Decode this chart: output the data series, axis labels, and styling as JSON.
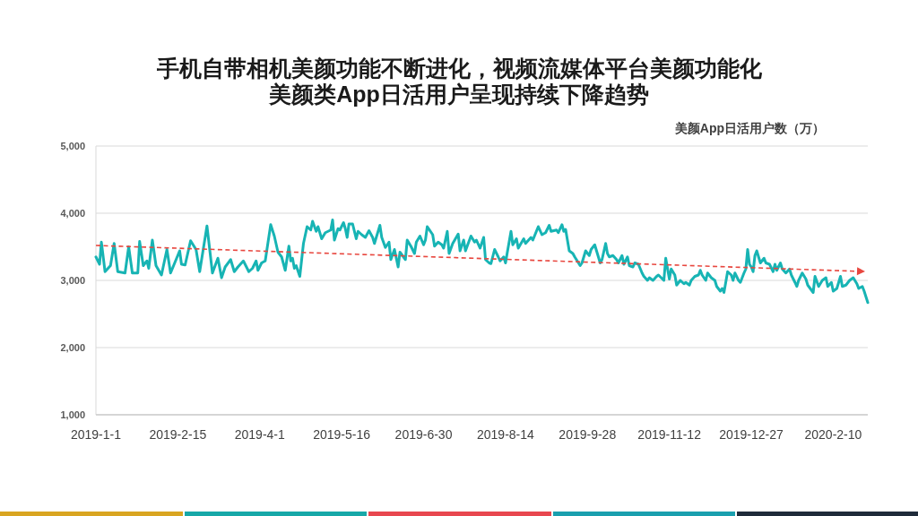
{
  "chart_data": {
    "type": "line",
    "title": "手机自带相机美颜功能不断进化，视频流媒体平台美颜功能化",
    "subtitle": "美颜类App日活用户呈现持续下降趋势",
    "ylabel": "美颜App日活用户数（万）",
    "xlim": [
      "2019-01-01",
      "2020-02-29"
    ],
    "xticks": [
      {
        "value": "2019-01-01",
        "label": "2019-1-1"
      },
      {
        "value": "2019-02-15",
        "label": "2019-2-15"
      },
      {
        "value": "2019-04-01",
        "label": "2019-4-1"
      },
      {
        "value": "2019-05-16",
        "label": "2019-5-16"
      },
      {
        "value": "2019-06-30",
        "label": "2019-6-30"
      },
      {
        "value": "2019-08-14",
        "label": "2019-8-14"
      },
      {
        "value": "2019-09-28",
        "label": "2019-9-28"
      },
      {
        "value": "2019-11-12",
        "label": "2019-11-12"
      },
      {
        "value": "2019-12-27",
        "label": "2019-12-27"
      },
      {
        "value": "2020-02-10",
        "label": "2020-2-10"
      }
    ],
    "ylim": [
      1000,
      5000
    ],
    "yticks": [
      {
        "value": 1000,
        "label": "1,000"
      },
      {
        "value": 2000,
        "label": "2,000"
      },
      {
        "value": 3000,
        "label": "3,000"
      },
      {
        "value": 4000,
        "label": "4,000"
      },
      {
        "value": 5000,
        "label": "5,000"
      }
    ],
    "grid": "y",
    "x": [
      "2019-01-01",
      "2019-01-03",
      "2019-01-04",
      "2019-01-06",
      "2019-01-09",
      "2019-01-11",
      "2019-01-13",
      "2019-01-17",
      "2019-01-19",
      "2019-01-21",
      "2019-01-24",
      "2019-01-25",
      "2019-01-27",
      "2019-01-29",
      "2019-01-30",
      "2019-02-01",
      "2019-02-03",
      "2019-02-06",
      "2019-02-09",
      "2019-02-11",
      "2019-02-16",
      "2019-02-17",
      "2019-02-19",
      "2019-02-22",
      "2019-02-25",
      "2019-02-27",
      "2019-03-03",
      "2019-03-06",
      "2019-03-09",
      "2019-03-11",
      "2019-03-13",
      "2019-03-16",
      "2019-03-18",
      "2019-03-20",
      "2019-03-23",
      "2019-03-26",
      "2019-03-28",
      "2019-03-30",
      "2019-03-31",
      "2019-04-02",
      "2019-04-04",
      "2019-04-07",
      "2019-04-09",
      "2019-04-11",
      "2019-04-13",
      "2019-04-15",
      "2019-04-17",
      "2019-04-18",
      "2019-04-19",
      "2019-04-20",
      "2019-04-21",
      "2019-04-23",
      "2019-04-25",
      "2019-04-27",
      "2019-04-29",
      "2019-04-30",
      "2019-05-02",
      "2019-05-03",
      "2019-05-05",
      "2019-05-07",
      "2019-05-10",
      "2019-05-11",
      "2019-05-12",
      "2019-05-14",
      "2019-05-15",
      "2019-05-17",
      "2019-05-18",
      "2019-05-19",
      "2019-05-20",
      "2019-05-22",
      "2019-05-24",
      "2019-05-25",
      "2019-05-27",
      "2019-05-29",
      "2019-05-31",
      "2019-06-02",
      "2019-06-03",
      "2019-06-06",
      "2019-06-07",
      "2019-06-09",
      "2019-06-11",
      "2019-06-12",
      "2019-06-14",
      "2019-06-16",
      "2019-06-17",
      "2019-06-20",
      "2019-06-21",
      "2019-06-23",
      "2019-06-25",
      "2019-06-26",
      "2019-06-28",
      "2019-06-30",
      "2019-07-01",
      "2019-07-02",
      "2019-07-05",
      "2019-07-06",
      "2019-07-08",
      "2019-07-10",
      "2019-07-11",
      "2019-07-13",
      "2019-07-14",
      "2019-07-16",
      "2019-07-19",
      "2019-07-20",
      "2019-07-22",
      "2019-07-23",
      "2019-07-26",
      "2019-07-28",
      "2019-07-29",
      "2019-07-31",
      "2019-08-02",
      "2019-08-03",
      "2019-08-05",
      "2019-08-06",
      "2019-08-08",
      "2019-08-10",
      "2019-08-11",
      "2019-08-13",
      "2019-08-14",
      "2019-08-15",
      "2019-08-17",
      "2019-08-18",
      "2019-08-20",
      "2019-08-21",
      "2019-08-24",
      "2019-08-25",
      "2019-08-28",
      "2019-08-29",
      "2019-09-01",
      "2019-09-03",
      "2019-09-05",
      "2019-09-07",
      "2019-09-08",
      "2019-09-11",
      "2019-09-12",
      "2019-09-14",
      "2019-09-15",
      "2019-09-16",
      "2019-09-17",
      "2019-09-18",
      "2019-09-20",
      "2019-09-21",
      "2019-09-24",
      "2019-09-25",
      "2019-09-27",
      "2019-09-29",
      "2019-09-30",
      "2019-10-02",
      "2019-10-04",
      "2019-10-05",
      "2019-10-06",
      "2019-10-08",
      "2019-10-09",
      "2019-10-10",
      "2019-10-12",
      "2019-10-14",
      "2019-10-15",
      "2019-10-17",
      "2019-10-18",
      "2019-10-20",
      "2019-10-21",
      "2019-10-23",
      "2019-10-24",
      "2019-10-26",
      "2019-10-28",
      "2019-10-29",
      "2019-10-31",
      "2019-11-01",
      "2019-11-03",
      "2019-11-05",
      "2019-11-06",
      "2019-11-09",
      "2019-11-10",
      "2019-11-12",
      "2019-11-13",
      "2019-11-15",
      "2019-11-16",
      "2019-11-18",
      "2019-11-20",
      "2019-11-21",
      "2019-11-23",
      "2019-11-24",
      "2019-11-26",
      "2019-11-28",
      "2019-11-29",
      "2019-11-30",
      "2019-12-02",
      "2019-12-03",
      "2019-12-05",
      "2019-12-07",
      "2019-12-08",
      "2019-12-10",
      "2019-12-11",
      "2019-12-12",
      "2019-12-14",
      "2019-12-16",
      "2019-12-17",
      "2019-12-18",
      "2019-12-20",
      "2019-12-21",
      "2019-12-23",
      "2019-12-24",
      "2019-12-25",
      "2019-12-26",
      "2019-12-27",
      "2019-12-28",
      "2019-12-29",
      "2019-12-30",
      "2020-01-01",
      "2020-01-03",
      "2020-01-04",
      "2020-01-06",
      "2020-01-08",
      "2020-01-09",
      "2020-01-10",
      "2020-01-12",
      "2020-01-13",
      "2020-01-15",
      "2020-01-17",
      "2020-01-18",
      "2020-01-20",
      "2020-01-21",
      "2020-01-22",
      "2020-01-24",
      "2020-01-26",
      "2020-01-27",
      "2020-01-30",
      "2020-01-31",
      "2020-02-02",
      "2020-02-04",
      "2020-02-06",
      "2020-02-07",
      "2020-02-09",
      "2020-02-10",
      "2020-02-12",
      "2020-02-14",
      "2020-02-15",
      "2020-02-17",
      "2020-02-19",
      "2020-02-21",
      "2020-02-23",
      "2020-02-24",
      "2020-02-26",
      "2020-02-27",
      "2020-02-29"
    ],
    "series": [
      {
        "color": "#17b4b4",
        "values": [
          3350,
          3240,
          3570,
          3130,
          3220,
          3550,
          3130,
          3110,
          3500,
          3110,
          3110,
          3580,
          3220,
          3290,
          3180,
          3600,
          3220,
          3080,
          3460,
          3110,
          3440,
          3240,
          3230,
          3590,
          3460,
          3130,
          3810,
          3110,
          3330,
          3040,
          3200,
          3310,
          3130,
          3200,
          3290,
          3130,
          3180,
          3290,
          3150,
          3260,
          3290,
          3830,
          3660,
          3420,
          3350,
          3150,
          3510,
          3290,
          3330,
          3180,
          3220,
          3060,
          3550,
          3800,
          3750,
          3880,
          3730,
          3800,
          3620,
          3710,
          3750,
          3900,
          3600,
          3770,
          3750,
          3860,
          3770,
          3640,
          3840,
          3840,
          3620,
          3730,
          3680,
          3640,
          3740,
          3640,
          3550,
          3820,
          3640,
          3490,
          3570,
          3310,
          3460,
          3200,
          3420,
          3310,
          3600,
          3510,
          3400,
          3570,
          3660,
          3530,
          3600,
          3800,
          3680,
          3510,
          3570,
          3530,
          3480,
          3730,
          3400,
          3550,
          3690,
          3440,
          3600,
          3440,
          3660,
          3570,
          3600,
          3480,
          3640,
          3310,
          3260,
          3250,
          3460,
          3350,
          3290,
          3350,
          3260,
          3420,
          3730,
          3530,
          3620,
          3480,
          3620,
          3550,
          3640,
          3600,
          3800,
          3680,
          3710,
          3820,
          3730,
          3750,
          3710,
          3830,
          3730,
          3760,
          3600,
          3440,
          3400,
          3350,
          3220,
          3260,
          3440,
          3370,
          3460,
          3530,
          3350,
          3260,
          3310,
          3550,
          3400,
          3350,
          3370,
          3310,
          3260,
          3370,
          3240,
          3350,
          3220,
          3200,
          3260,
          3240,
          3110,
          3060,
          3000,
          3040,
          3000,
          3060,
          3080,
          3000,
          3330,
          3020,
          3170,
          3080,
          2930,
          3000,
          2950,
          2970,
          2930,
          3000,
          3060,
          3080,
          3150,
          3080,
          3000,
          3110,
          3040,
          3000,
          2910,
          2840,
          2880,
          2820,
          3130,
          3080,
          3000,
          3110,
          3000,
          2970,
          3110,
          3170,
          3460,
          3240,
          3200,
          3130,
          3370,
          3440,
          3260,
          3330,
          3260,
          3240,
          3130,
          3240,
          3150,
          3260,
          3170,
          3110,
          3170,
          3080,
          2970,
          2910,
          3000,
          3110,
          3020,
          2930,
          2820,
          3060,
          2910,
          3000,
          3040,
          2910,
          2970,
          2840,
          2880,
          3060,
          2910,
          2930,
          3000,
          3040,
          2950,
          2880,
          2910,
          2840,
          2670
        ]
      }
    ]
  }
}
